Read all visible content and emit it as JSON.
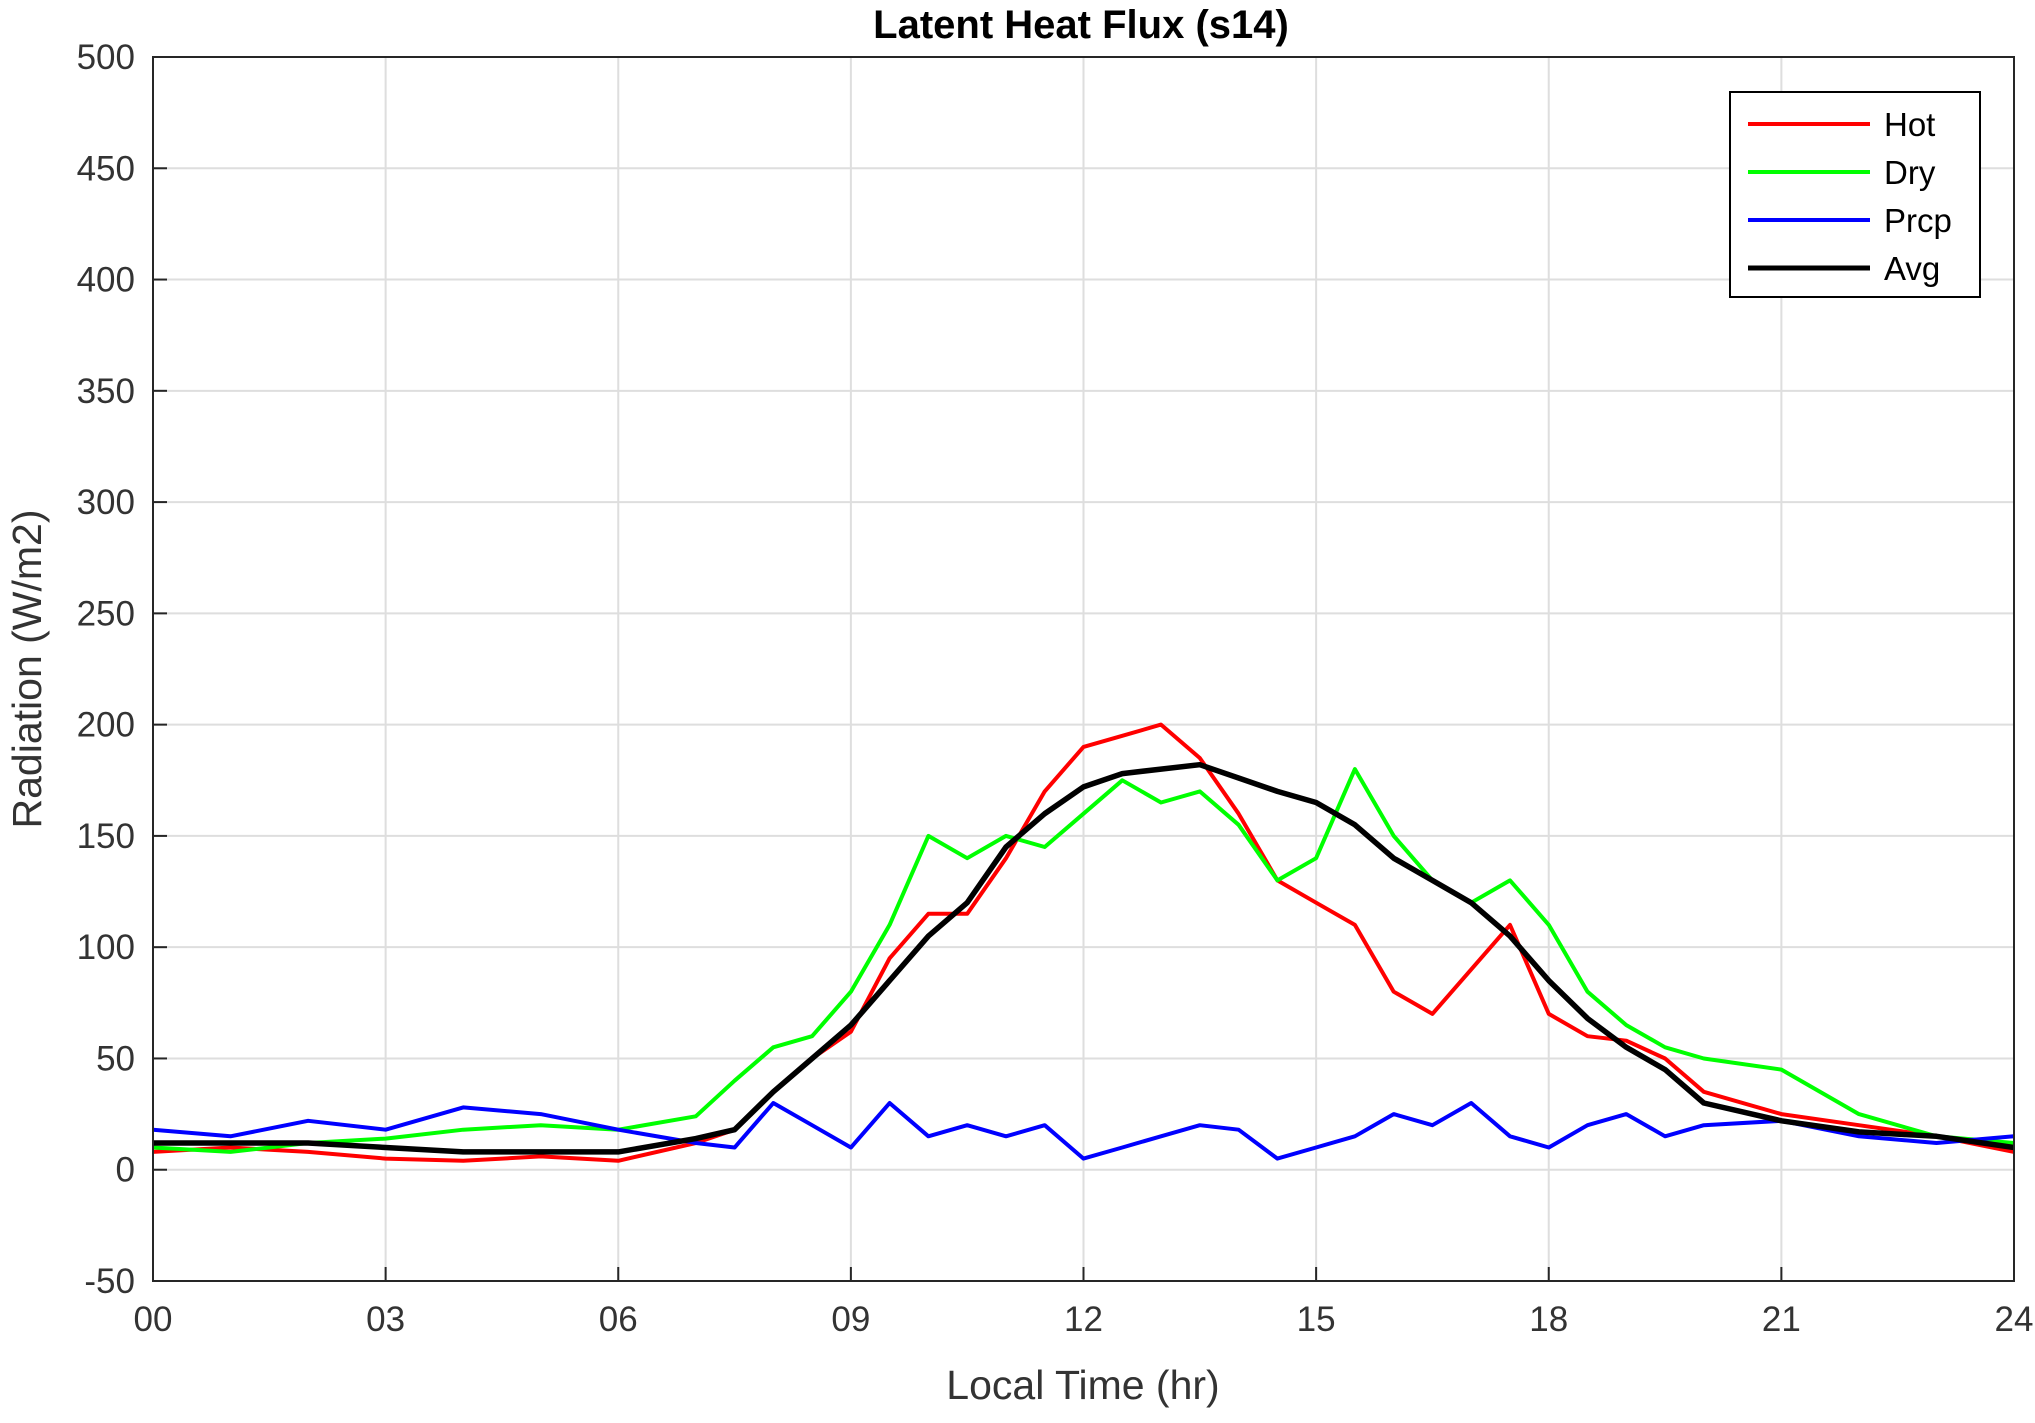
{
  "chart_data": {
    "type": "line",
    "title": "Latent Heat Flux (s14)",
    "xlabel": "Local Time (hr)",
    "ylabel": "Radiation (W/m2)",
    "xlim": [
      0,
      24
    ],
    "ylim": [
      -50,
      500
    ],
    "x_ticks": [
      0,
      3,
      6,
      9,
      12,
      15,
      18,
      21,
      24
    ],
    "x_tick_labels": [
      "00",
      "03",
      "06",
      "09",
      "12",
      "15",
      "18",
      "21",
      "24"
    ],
    "y_ticks": [
      -50,
      0,
      50,
      100,
      150,
      200,
      250,
      300,
      350,
      400,
      450,
      500
    ],
    "y_tick_labels": [
      "-50",
      "0",
      "50",
      "100",
      "150",
      "200",
      "250",
      "300",
      "350",
      "400",
      "450",
      "500"
    ],
    "grid": true,
    "legend_position": "top-right",
    "x": [
      0,
      1,
      2,
      3,
      4,
      5,
      6,
      7,
      7.5,
      8,
      8.5,
      9,
      9.5,
      10,
      10.5,
      11,
      11.5,
      12,
      12.5,
      13,
      13.5,
      14,
      14.5,
      15,
      15.5,
      16,
      16.5,
      17,
      17.5,
      18,
      18.5,
      19,
      19.5,
      20,
      21,
      22,
      23,
      24
    ],
    "series": [
      {
        "name": "Hot",
        "color": "#ff0000",
        "values": [
          8,
          10,
          8,
          5,
          4,
          6,
          4,
          12,
          18,
          35,
          50,
          62,
          95,
          115,
          115,
          140,
          170,
          190,
          195,
          200,
          185,
          160,
          130,
          120,
          110,
          80,
          70,
          90,
          110,
          70,
          60,
          58,
          50,
          35,
          25,
          20,
          15,
          8
        ]
      },
      {
        "name": "Dry",
        "color": "#00ff00",
        "values": [
          10,
          8,
          12,
          14,
          18,
          20,
          18,
          24,
          40,
          55,
          60,
          80,
          110,
          150,
          140,
          150,
          145,
          160,
          175,
          165,
          170,
          155,
          130,
          140,
          180,
          150,
          130,
          120,
          130,
          110,
          80,
          65,
          55,
          50,
          45,
          25,
          15,
          12
        ]
      },
      {
        "name": "Prcp",
        "color": "#0000ff",
        "values": [
          18,
          15,
          22,
          18,
          28,
          25,
          18,
          12,
          10,
          30,
          20,
          10,
          30,
          15,
          20,
          15,
          20,
          5,
          10,
          15,
          20,
          18,
          5,
          10,
          15,
          25,
          20,
          30,
          15,
          10,
          20,
          25,
          15,
          20,
          22,
          15,
          12,
          15
        ]
      },
      {
        "name": "Avg",
        "color": "#000000",
        "values": [
          12,
          12,
          12,
          10,
          8,
          8,
          8,
          14,
          18,
          35,
          50,
          65,
          85,
          105,
          120,
          145,
          160,
          172,
          178,
          180,
          182,
          176,
          170,
          165,
          155,
          140,
          130,
          120,
          105,
          85,
          68,
          55,
          45,
          30,
          22,
          17,
          15,
          10
        ]
      }
    ]
  }
}
